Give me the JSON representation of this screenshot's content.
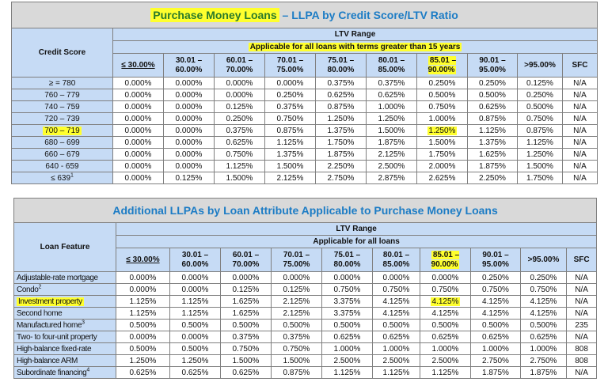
{
  "colors": {
    "title_blue": "#1c7cc5",
    "header_blue": "#c6dbf5",
    "title_gray": "#d9d9d9",
    "highlight": "#ffff2e",
    "title_green": "#2a7a2a"
  },
  "table1": {
    "title_highlighted": "Purchase Money Loans",
    "title_rest": " – LLPA by Credit Score/LTV Ratio",
    "row_header": "Credit Score",
    "band1": "LTV Range",
    "band2": "Applicable for all loans with terms greater than 15 years",
    "band2_highlighted": true,
    "columns": [
      {
        "l1": "≤ 30.00%",
        "l2": ""
      },
      {
        "l1": "30.01 –",
        "l2": "60.00%"
      },
      {
        "l1": "60.01 –",
        "l2": "70.00%"
      },
      {
        "l1": "70.01 –",
        "l2": "75.00%"
      },
      {
        "l1": "75.01 –",
        "l2": "80.00%"
      },
      {
        "l1": "80.01 –",
        "l2": "85.00%"
      },
      {
        "l1": "85.01 –",
        "l2": "90.00%",
        "highlight": true
      },
      {
        "l1": "90.01 –",
        "l2": "95.00%"
      },
      {
        "l1": ">95.00%",
        "l2": ""
      },
      {
        "l1": "SFC",
        "l2": ""
      }
    ],
    "rows": [
      {
        "label": "≥ = 780",
        "sup": "",
        "values": [
          "0.000%",
          "0.000%",
          "0.000%",
          "0.000%",
          "0.375%",
          "0.375%",
          "0.250%",
          "0.250%",
          "0.125%",
          "N/A"
        ]
      },
      {
        "label": "760 – 779",
        "sup": "",
        "values": [
          "0.000%",
          "0.000%",
          "0.000%",
          "0.250%",
          "0.625%",
          "0.625%",
          "0.500%",
          "0.500%",
          "0.250%",
          "N/A"
        ]
      },
      {
        "label": "740 – 759",
        "sup": "",
        "values": [
          "0.000%",
          "0.000%",
          "0.125%",
          "0.375%",
          "0.875%",
          "1.000%",
          "0.750%",
          "0.625%",
          "0.500%",
          "N/A"
        ]
      },
      {
        "label": "720 – 739",
        "sup": "",
        "values": [
          "0.000%",
          "0.000%",
          "0.250%",
          "0.750%",
          "1.250%",
          "1.250%",
          "1.000%",
          "0.875%",
          "0.750%",
          "N/A"
        ]
      },
      {
        "label": "700 – 719",
        "sup": "",
        "highlight": true,
        "highlight_cell": 6,
        "values": [
          "0.000%",
          "0.000%",
          "0.375%",
          "0.875%",
          "1.375%",
          "1.500%",
          "1.250%",
          "1.125%",
          "0.875%",
          "N/A"
        ]
      },
      {
        "label": "680 – 699",
        "sup": "",
        "values": [
          "0.000%",
          "0.000%",
          "0.625%",
          "1.125%",
          "1.750%",
          "1.875%",
          "1.500%",
          "1.375%",
          "1.125%",
          "N/A"
        ]
      },
      {
        "label": "660 – 679",
        "sup": "",
        "values": [
          "0.000%",
          "0.000%",
          "0.750%",
          "1.375%",
          "1.875%",
          "2.125%",
          "1.750%",
          "1.625%",
          "1.250%",
          "N/A"
        ]
      },
      {
        "label": "640 - 659",
        "sup": "",
        "values": [
          "0.000%",
          "0.000%",
          "1.125%",
          "1.500%",
          "2.250%",
          "2.500%",
          "2.000%",
          "1.875%",
          "1.500%",
          "N/A"
        ]
      },
      {
        "label": "≤ 639",
        "sup": "1",
        "values": [
          "0.000%",
          "0.125%",
          "1.500%",
          "2.125%",
          "2.750%",
          "2.875%",
          "2.625%",
          "2.250%",
          "1.750%",
          "N/A"
        ]
      }
    ]
  },
  "table2": {
    "title": "Additional LLPAs by Loan Attribute Applicable to Purchase Money Loans",
    "row_header": "Loan Feature",
    "band1": "LTV Range",
    "band2": "Applicable for all loans",
    "columns": [
      {
        "l1": "≤ 30.00%",
        "l2": ""
      },
      {
        "l1": "30.01 –",
        "l2": "60.00%"
      },
      {
        "l1": "60.01 –",
        "l2": "70.00%"
      },
      {
        "l1": "70.01 –",
        "l2": "75.00%"
      },
      {
        "l1": "75.01 –",
        "l2": "80.00%"
      },
      {
        "l1": "80.01 –",
        "l2": "85.00%"
      },
      {
        "l1": "85.01 –",
        "l2": "90.00%",
        "highlight": true
      },
      {
        "l1": "90.01 –",
        "l2": "95.00%"
      },
      {
        "l1": ">95.00%",
        "l2": ""
      },
      {
        "l1": "SFC",
        "l2": ""
      }
    ],
    "rows": [
      {
        "label": "Adjustable-rate mortgage",
        "sup": "",
        "values": [
          "0.000%",
          "0.000%",
          "0.000%",
          "0.000%",
          "0.000%",
          "0.000%",
          "0.000%",
          "0.250%",
          "0.250%",
          "N/A"
        ]
      },
      {
        "label": "Condo",
        "sup": "2",
        "values": [
          "0.000%",
          "0.000%",
          "0.125%",
          "0.125%",
          "0.750%",
          "0.750%",
          "0.750%",
          "0.750%",
          "0.750%",
          "N/A"
        ]
      },
      {
        "label": "Investment property",
        "sup": "",
        "highlight": true,
        "highlight_cell": 6,
        "values": [
          "1.125%",
          "1.125%",
          "1.625%",
          "2.125%",
          "3.375%",
          "4.125%",
          "4.125%",
          "4.125%",
          "4.125%",
          "N/A"
        ]
      },
      {
        "label": "Second home",
        "sup": "",
        "values": [
          "1.125%",
          "1.125%",
          "1.625%",
          "2.125%",
          "3.375%",
          "4.125%",
          "4.125%",
          "4.125%",
          "4.125%",
          "N/A"
        ]
      },
      {
        "label": "Manufactured home",
        "sup": "3",
        "values": [
          "0.500%",
          "0.500%",
          "0.500%",
          "0.500%",
          "0.500%",
          "0.500%",
          "0.500%",
          "0.500%",
          "0.500%",
          "235"
        ]
      },
      {
        "label": "Two- to four-unit property",
        "sup": "",
        "values": [
          "0.000%",
          "0.000%",
          "0.375%",
          "0.375%",
          "0.625%",
          "0.625%",
          "0.625%",
          "0.625%",
          "0.625%",
          "N/A"
        ]
      },
      {
        "label": "High-balance fixed-rate",
        "sup": "",
        "values": [
          "0.500%",
          "0.500%",
          "0.750%",
          "0.750%",
          "1.000%",
          "1.000%",
          "1.000%",
          "1.000%",
          "1.000%",
          "808"
        ]
      },
      {
        "label": "High-balance ARM",
        "sup": "",
        "values": [
          "1.250%",
          "1.250%",
          "1.500%",
          "1.500%",
          "2.500%",
          "2.500%",
          "2.500%",
          "2.750%",
          "2.750%",
          "808"
        ]
      },
      {
        "label": "Subordinate financing",
        "sup": "4",
        "values": [
          "0.625%",
          "0.625%",
          "0.625%",
          "0.875%",
          "1.125%",
          "1.125%",
          "1.125%",
          "1.875%",
          "1.875%",
          "N/A"
        ]
      }
    ]
  }
}
